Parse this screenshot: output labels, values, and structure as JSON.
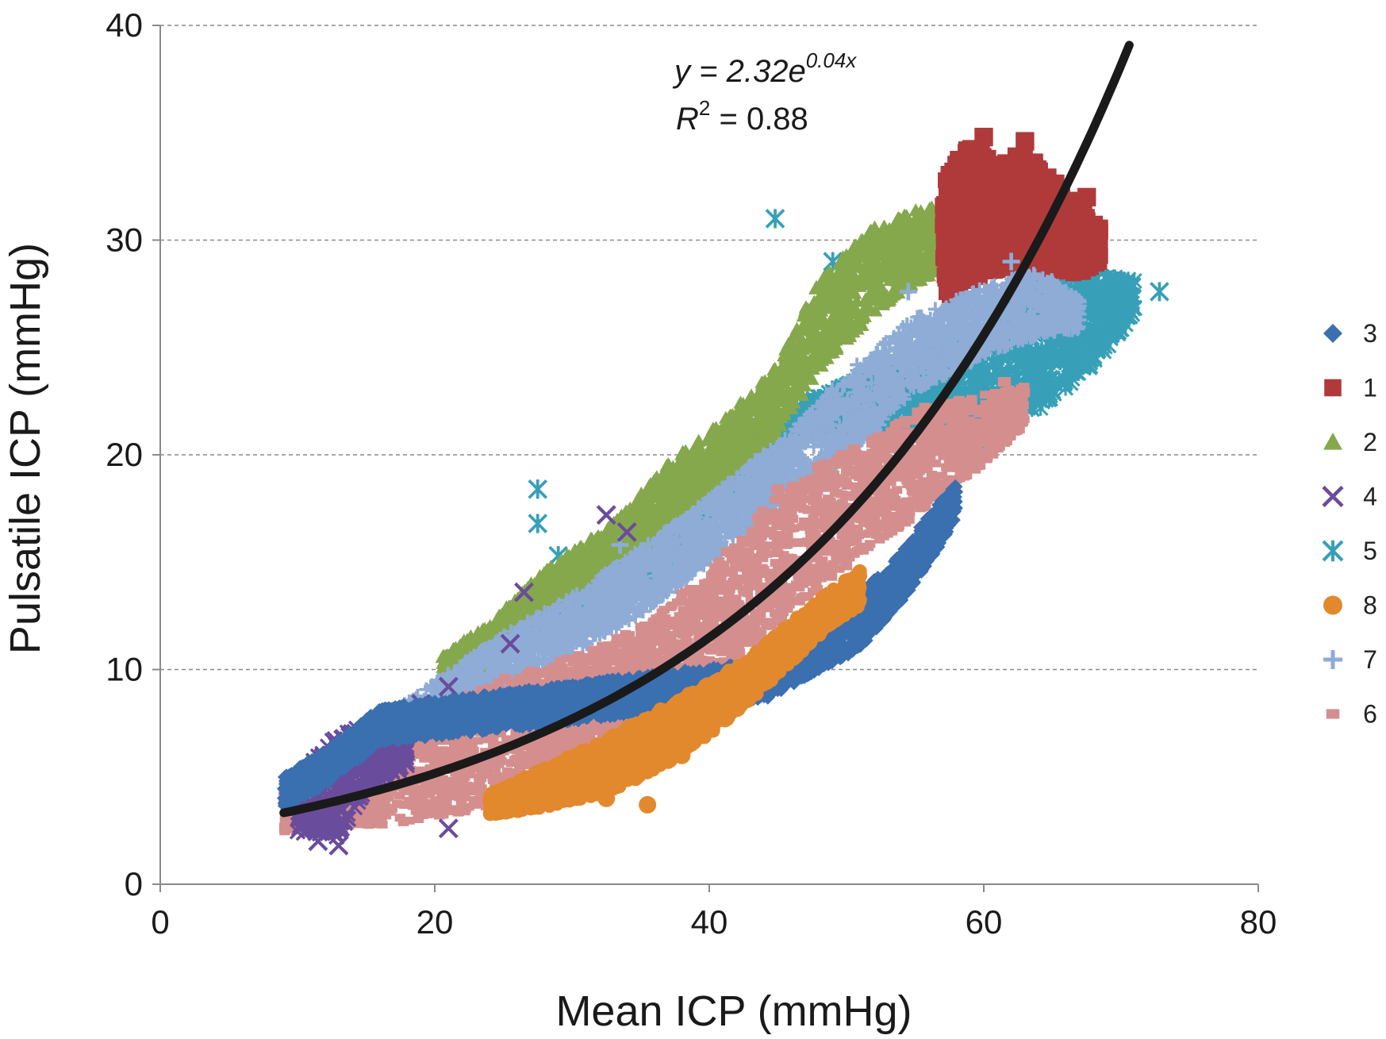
{
  "chart_data": {
    "type": "scatter",
    "title": "",
    "xlabel": "Mean ICP (mmHg)",
    "ylabel": "Pulsatile ICP (mmHg)",
    "xlim": [
      0,
      80
    ],
    "ylim": [
      0,
      40
    ],
    "xticks": [
      "0",
      "20",
      "40",
      "60",
      "80"
    ],
    "yticks": [
      "0",
      "10",
      "20",
      "30",
      "40"
    ],
    "grid": "horizontal dashed",
    "legend_position": "right",
    "fit": {
      "equation_prefix": "y = 2.32e",
      "equation_exponent": "0.04x",
      "r2_prefix": "R",
      "r2_sup": "2",
      "r2_value": " = 0.88",
      "a": 2.32,
      "b": 0.04,
      "x_range": [
        9,
        70.6
      ],
      "color": "#1a1a1a"
    },
    "series": [
      {
        "name": "3",
        "marker": "diamond",
        "color": "#3a6fb0",
        "bands": [
          [
            9,
            3.6,
            5.0
          ],
          [
            12,
            4.6,
            6.2
          ],
          [
            16,
            6.6,
            8.2
          ],
          [
            44,
            8.6,
            10.4
          ],
          [
            48,
            10.0,
            11.6
          ],
          [
            51,
            11.0,
            13.6
          ],
          [
            54,
            13.2,
            15.4
          ],
          [
            56,
            15.0,
            17.2
          ],
          [
            58,
            17.0,
            18.6
          ]
        ],
        "points": [
          [
            50.5,
            11.6
          ],
          [
            17.5,
            8.0
          ],
          [
            13.0,
            6.0
          ]
        ]
      },
      {
        "name": "1",
        "marker": "square",
        "color": "#b03a3a",
        "bands": [
          [
            57,
            27.0,
            33.0
          ],
          [
            59,
            28.0,
            34.6
          ],
          [
            61,
            28.6,
            33.6
          ],
          [
            63,
            28.6,
            34.2
          ],
          [
            65,
            28.6,
            33.0
          ],
          [
            67,
            28.4,
            31.6
          ],
          [
            68.5,
            29.0,
            30.6
          ]
        ],
        "points": [
          [
            60.0,
            34.8
          ],
          [
            63.0,
            34.6
          ],
          [
            67.5,
            32.0
          ],
          [
            57.5,
            32.5
          ]
        ]
      },
      {
        "name": "2",
        "marker": "triangle",
        "color": "#86a84c",
        "bands": [
          [
            20.5,
            8.6,
            10.6
          ],
          [
            24,
            9.6,
            12.2
          ],
          [
            28,
            12.6,
            14.6
          ],
          [
            33,
            14.6,
            16.8
          ],
          [
            37,
            16.4,
            19.6
          ],
          [
            41,
            18.6,
            21.6
          ],
          [
            45,
            21.0,
            24.2
          ],
          [
            48,
            24.0,
            28.2
          ],
          [
            52,
            26.6,
            30.6
          ],
          [
            55,
            28.0,
            31.4
          ],
          [
            57,
            28.6,
            31.6
          ]
        ],
        "points": [
          [
            26.0,
            12.8
          ],
          [
            42.0,
            20.8
          ],
          [
            51.5,
            29.6
          ],
          [
            56.8,
            31.6
          ]
        ]
      },
      {
        "name": "4",
        "marker": "x",
        "color": "#6a4c9c",
        "bands": [
          [
            10,
            2.4,
            5.0
          ],
          [
            13,
            2.2,
            7.0
          ],
          [
            15,
            4.4,
            7.4
          ],
          [
            18,
            5.4,
            8.0
          ]
        ],
        "points": [
          [
            11.5,
            2.0
          ],
          [
            13.0,
            1.8
          ],
          [
            12.0,
            5.8
          ],
          [
            14.0,
            7.0
          ],
          [
            16.0,
            7.2
          ],
          [
            19.0,
            8.4
          ],
          [
            21.0,
            9.2
          ],
          [
            25.5,
            11.2
          ],
          [
            26.5,
            13.6
          ],
          [
            32.5,
            17.2
          ],
          [
            34.0,
            16.4
          ],
          [
            21.0,
            2.6
          ]
        ]
      },
      {
        "name": "5",
        "marker": "asterisk",
        "color": "#37a0b8",
        "bands": [
          [
            28,
            11.8,
            13.6
          ],
          [
            32,
            13.0,
            15.2
          ],
          [
            36,
            14.2,
            16.4
          ],
          [
            40,
            16.8,
            19.2
          ],
          [
            44,
            19.4,
            21.4
          ],
          [
            48,
            21.2,
            22.8
          ],
          [
            53,
            21.0,
            24.0
          ],
          [
            60,
            20.6,
            26.0
          ],
          [
            64,
            22.0,
            28.0
          ],
          [
            68,
            24.2,
            28.4
          ],
          [
            71,
            26.6,
            28.2
          ]
        ],
        "points": [
          [
            27.5,
            18.4
          ],
          [
            27.5,
            16.8
          ],
          [
            29.0,
            15.3
          ],
          [
            44.8,
            31.0
          ],
          [
            49.0,
            29.0
          ],
          [
            48.2,
            25.0
          ],
          [
            72.8,
            27.6
          ],
          [
            62.5,
            30.0
          ],
          [
            43.5,
            21.8
          ],
          [
            47.5,
            22.0
          ]
        ]
      },
      {
        "name": "8",
        "marker": "circle",
        "color": "#e2892e",
        "bands": [
          [
            24,
            3.2,
            4.2
          ],
          [
            28,
            3.6,
            5.4
          ],
          [
            32,
            4.2,
            6.6
          ],
          [
            36,
            5.2,
            8.0
          ],
          [
            40,
            7.0,
            9.4
          ],
          [
            43,
            8.6,
            10.6
          ],
          [
            46,
            10.4,
            12.2
          ],
          [
            49,
            12.2,
            13.8
          ],
          [
            51,
            13.0,
            14.6
          ]
        ],
        "points": [
          [
            35.5,
            3.7
          ],
          [
            32.5,
            4.0
          ],
          [
            38.0,
            6.0
          ],
          [
            47.0,
            12.4
          ]
        ]
      },
      {
        "name": "7",
        "marker": "plus",
        "color": "#8eacd6",
        "bands": [
          [
            16,
            6.2,
            7.6
          ],
          [
            20,
            7.2,
            9.4
          ],
          [
            25,
            9.0,
            11.6
          ],
          [
            30,
            10.8,
            13.4
          ],
          [
            35,
            12.6,
            15.6
          ],
          [
            40,
            15.0,
            18.0
          ],
          [
            45,
            17.6,
            20.6
          ],
          [
            50,
            19.8,
            23.8
          ],
          [
            55,
            23.0,
            26.4
          ],
          [
            60,
            24.6,
            27.8
          ],
          [
            64,
            25.6,
            28.6
          ],
          [
            67,
            25.8,
            27.2
          ]
        ],
        "points": [
          [
            62.0,
            29.0
          ],
          [
            66.5,
            26.2
          ],
          [
            54.5,
            27.6
          ],
          [
            33.5,
            15.8
          ]
        ]
      },
      {
        "name": "6",
        "marker": "smallsquare",
        "color": "#d58e8e",
        "bands": [
          [
            9,
            2.4,
            4.6
          ],
          [
            13,
            2.6,
            6.2
          ],
          [
            17,
            2.8,
            7.4
          ],
          [
            21,
            3.2,
            8.4
          ],
          [
            25,
            3.8,
            9.6
          ],
          [
            30,
            5.6,
            10.6
          ],
          [
            35,
            7.6,
            12.0
          ],
          [
            40,
            9.4,
            14.6
          ],
          [
            44,
            11.6,
            17.6
          ],
          [
            48,
            13.8,
            19.6
          ],
          [
            52,
            15.8,
            20.8
          ],
          [
            56,
            17.6,
            22.4
          ],
          [
            60,
            19.6,
            22.8
          ],
          [
            63,
            21.4,
            23.2
          ]
        ],
        "points": [
          [
            9.5,
            2.6
          ],
          [
            61.5,
            23.4
          ],
          [
            45.0,
            18.4
          ]
        ]
      }
    ]
  }
}
